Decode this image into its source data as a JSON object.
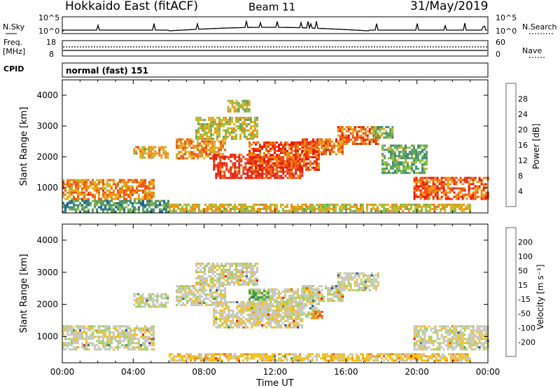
{
  "header": {
    "title": "Hokkaido East (fitACF)",
    "beam": "Beam 11",
    "date": "31/May/2019"
  },
  "sky_panel": {
    "label": "N.Sky",
    "left_ticks": [
      "10^5",
      "10^0"
    ],
    "right_ticks": [
      "10^5",
      "10^0"
    ],
    "right_label": "N.Search"
  },
  "freq_panel": {
    "label_line1": "Freq.",
    "label_line2": "[MHz]",
    "left_ticks": [
      "18",
      "8"
    ],
    "right_ticks": [
      "60",
      "0"
    ],
    "right_label": "Nave"
  },
  "cpid_panel": {
    "label": "CPID",
    "value": "normal (fast) 151"
  },
  "colors": {
    "power_scale": [
      "#0019e6",
      "#2060a0",
      "#3f8a7a",
      "#5fa060",
      "#8cc040",
      "#e0b020",
      "#f08a10",
      "#f05010",
      "#e81a10"
    ],
    "velocity_scale": [
      "#e81010",
      "#f05010",
      "#f09010",
      "#f0c020",
      "#c8c8c0",
      "#a0d060",
      "#40a040",
      "#2a7a70",
      "#204aa0"
    ]
  },
  "chart_data": [
    {
      "type": "heatmap",
      "panel": "power",
      "xlabel": "",
      "ylabel": "Slant Range [km]",
      "xlim_hours": [
        0,
        24
      ],
      "ylim_km": [
        180,
        4500
      ],
      "yticks": [
        1000,
        2000,
        3000,
        4000
      ],
      "colorbar": {
        "label": "Power [dB]",
        "range": [
          0,
          32
        ],
        "ticks": [
          4,
          8,
          12,
          16,
          20,
          24,
          28
        ]
      },
      "bands": [
        {
          "t0": 0.0,
          "t1": 5.2,
          "r0": 620,
          "r1": 1280,
          "level": 0.72
        },
        {
          "t0": 0.0,
          "t1": 6.0,
          "r0": 200,
          "r1": 600,
          "level": 0.35
        },
        {
          "t0": 4.0,
          "t1": 6.0,
          "r0": 2000,
          "r1": 2350,
          "level": 0.65
        },
        {
          "t0": 6.4,
          "t1": 9.2,
          "r0": 1950,
          "r1": 2600,
          "level": 0.72
        },
        {
          "t0": 7.5,
          "t1": 11.0,
          "r0": 2600,
          "r1": 3300,
          "level": 0.55
        },
        {
          "t0": 8.5,
          "t1": 13.5,
          "r0": 1300,
          "r1": 2100,
          "level": 0.92
        },
        {
          "t0": 10.5,
          "t1": 14.5,
          "r0": 1600,
          "r1": 2500,
          "level": 0.85
        },
        {
          "t0": 13.5,
          "t1": 15.8,
          "r0": 2100,
          "r1": 2600,
          "level": 0.8
        },
        {
          "t0": 15.5,
          "t1": 17.8,
          "r0": 2450,
          "r1": 3000,
          "level": 0.78
        },
        {
          "t0": 17.5,
          "t1": 18.6,
          "r0": 2600,
          "r1": 3000,
          "level": 0.45
        },
        {
          "t0": 18.0,
          "t1": 20.5,
          "r0": 1500,
          "r1": 2400,
          "level": 0.4
        },
        {
          "t0": 19.8,
          "t1": 24.0,
          "r0": 600,
          "r1": 1350,
          "level": 0.82
        },
        {
          "t0": 6.0,
          "t1": 23.0,
          "r0": 220,
          "r1": 480,
          "level": 0.6
        },
        {
          "t0": 9.3,
          "t1": 10.5,
          "r0": 3450,
          "r1": 3850,
          "level": 0.55
        }
      ]
    },
    {
      "type": "heatmap",
      "panel": "velocity",
      "xlabel": "Time UT",
      "ylabel": "Slant Range [km]",
      "xlim_hours": [
        0,
        24
      ],
      "ylim_km": [
        180,
        4500
      ],
      "xticks": [
        "00:00",
        "04:00",
        "08:00",
        "12:00",
        "16:00",
        "20:00",
        "00:00"
      ],
      "xtick_hours": [
        0,
        4,
        8,
        12,
        16,
        20,
        24
      ],
      "yticks": [
        1000,
        2000,
        3000,
        4000
      ],
      "colorbar": {
        "label": "Velocity [m s⁻¹]",
        "range": [
          -250,
          250
        ],
        "ticks": [
          -200,
          -100,
          -50,
          -15,
          15,
          50,
          100,
          200
        ]
      },
      "bands": [
        {
          "t0": 0.0,
          "t1": 5.2,
          "r0": 600,
          "r1": 1350,
          "level": 0.5
        },
        {
          "t0": 4.0,
          "t1": 6.0,
          "r0": 1950,
          "r1": 2350,
          "level": 0.52
        },
        {
          "t0": 6.4,
          "t1": 9.2,
          "r0": 1950,
          "r1": 2600,
          "level": 0.5
        },
        {
          "t0": 7.5,
          "t1": 11.0,
          "r0": 2600,
          "r1": 3300,
          "level": 0.5
        },
        {
          "t0": 8.5,
          "t1": 13.5,
          "r0": 1300,
          "r1": 2100,
          "level": 0.47
        },
        {
          "t0": 10.5,
          "t1": 14.5,
          "r0": 1600,
          "r1": 2500,
          "level": 0.5
        },
        {
          "t0": 13.5,
          "t1": 15.8,
          "r0": 2100,
          "r1": 2600,
          "level": 0.5
        },
        {
          "t0": 15.5,
          "t1": 17.8,
          "r0": 2450,
          "r1": 3000,
          "level": 0.5
        },
        {
          "t0": 19.8,
          "t1": 24.0,
          "r0": 600,
          "r1": 1350,
          "level": 0.5
        },
        {
          "t0": 10.5,
          "t1": 11.6,
          "r0": 2150,
          "r1": 2450,
          "level": 0.7
        },
        {
          "t0": 14.0,
          "t1": 14.6,
          "r0": 1550,
          "r1": 1800,
          "level": 0.25
        },
        {
          "t0": 6.0,
          "t1": 23.0,
          "r0": 220,
          "r1": 480,
          "level": 0.4
        }
      ]
    }
  ]
}
